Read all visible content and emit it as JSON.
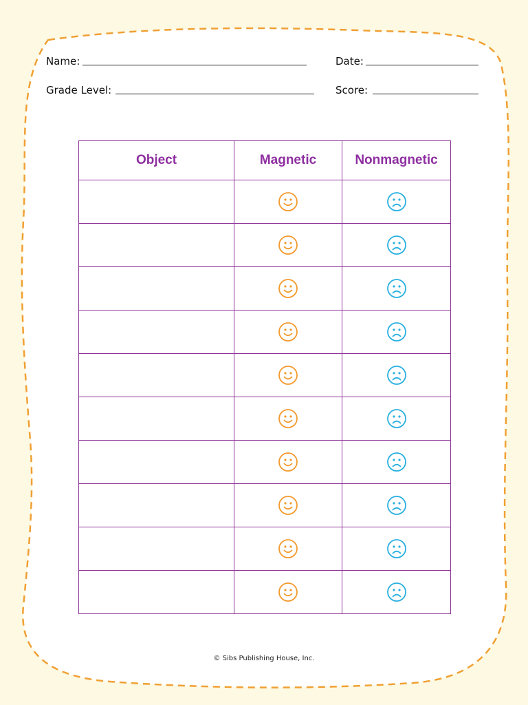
{
  "header": {
    "name_label": "Name:",
    "date_label": "Date:",
    "grade_label": "Grade Level:",
    "score_label": "Score:"
  },
  "table": {
    "columns": [
      "Object",
      "Magnetic",
      "Nonmagnetic"
    ],
    "rows": [
      {
        "object": "",
        "magnetic": "smiley-face-icon",
        "nonmagnetic": "frowny-face-icon"
      },
      {
        "object": "",
        "magnetic": "smiley-face-icon",
        "nonmagnetic": "frowny-face-icon"
      },
      {
        "object": "",
        "magnetic": "smiley-face-icon",
        "nonmagnetic": "frowny-face-icon"
      },
      {
        "object": "",
        "magnetic": "smiley-face-icon",
        "nonmagnetic": "frowny-face-icon"
      },
      {
        "object": "",
        "magnetic": "smiley-face-icon",
        "nonmagnetic": "frowny-face-icon"
      },
      {
        "object": "",
        "magnetic": "smiley-face-icon",
        "nonmagnetic": "frowny-face-icon"
      },
      {
        "object": "",
        "magnetic": "smiley-face-icon",
        "nonmagnetic": "frowny-face-icon"
      },
      {
        "object": "",
        "magnetic": "smiley-face-icon",
        "nonmagnetic": "frowny-face-icon"
      },
      {
        "object": "",
        "magnetic": "smiley-face-icon",
        "nonmagnetic": "frowny-face-icon"
      },
      {
        "object": "",
        "magnetic": "smiley-face-icon",
        "nonmagnetic": "frowny-face-icon"
      }
    ]
  },
  "footer": {
    "copyright": "© Sibs Publishing House, Inc."
  },
  "colors": {
    "page_background": "#fdf9e3",
    "sheet_fill": "#ffffff",
    "dashed_border": "#f0a033",
    "table_border": "#8e3399",
    "header_text": "#8e2fa0",
    "smiley": "#f39a2e",
    "frowny": "#2ab0e0"
  }
}
